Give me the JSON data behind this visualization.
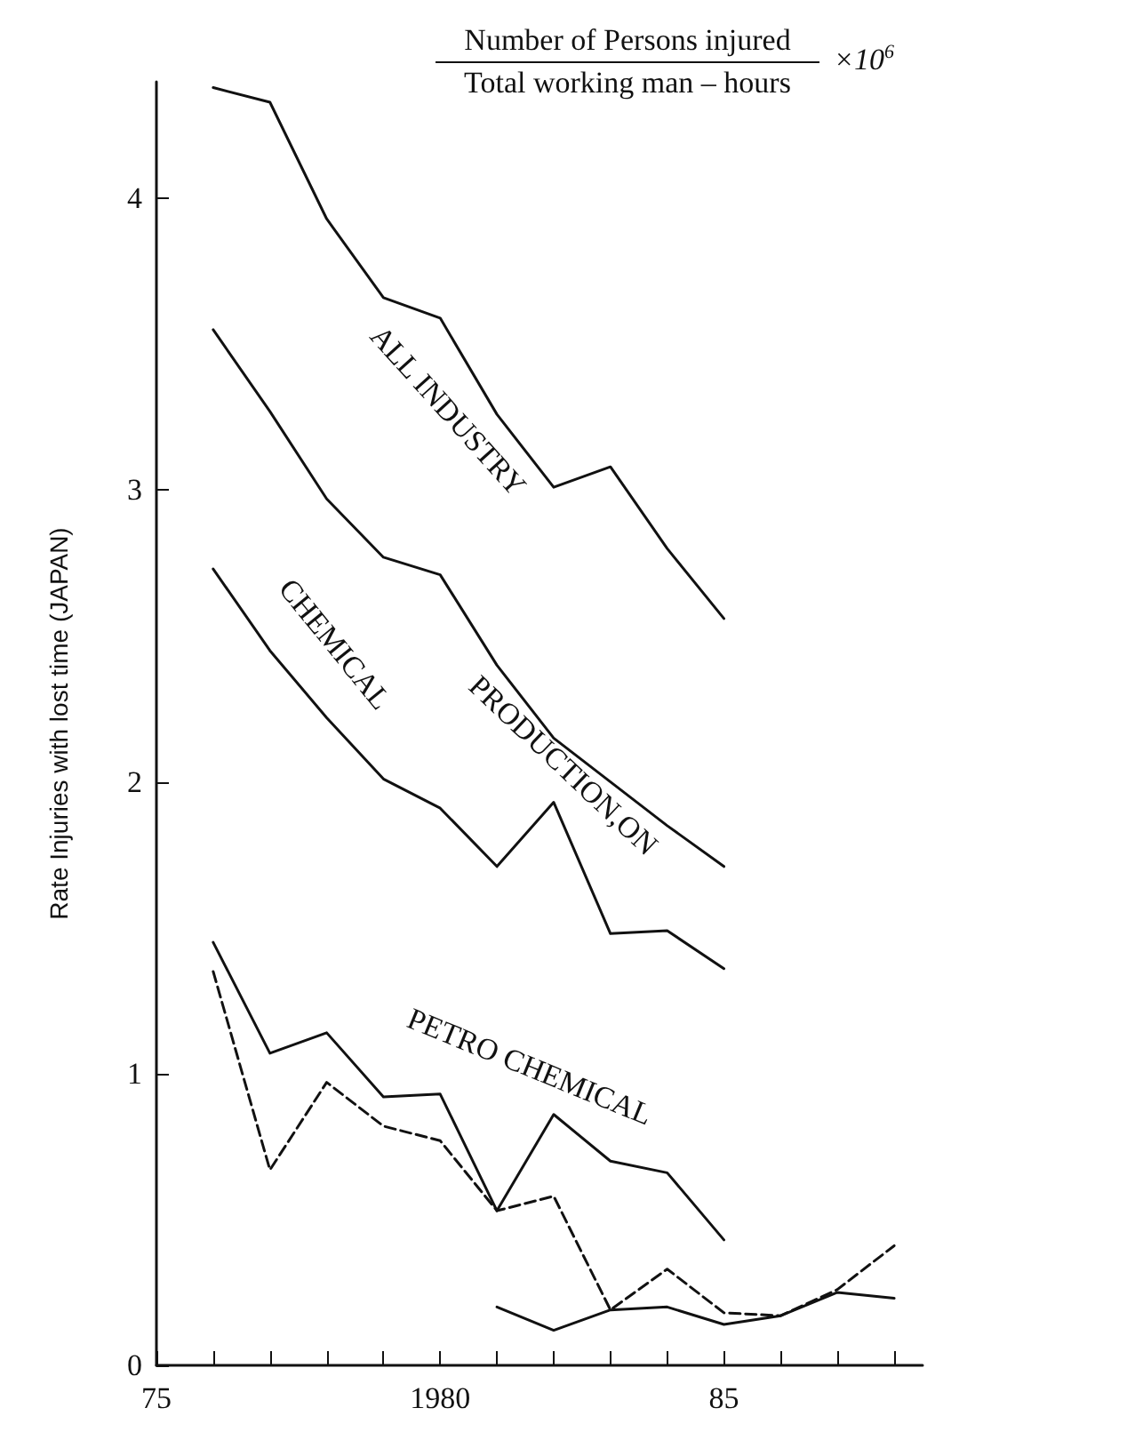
{
  "chart_data": {
    "type": "line",
    "title": "Number of Persons injured",
    "subtitle": "Total working man – hours",
    "annotations": [
      "×10$^{6}$"
    ],
    "ylabel": "Rate Injuries with lost time (JAPAN)",
    "xlim": [
      1975,
      1988.5
    ],
    "ylim": [
      0,
      4.4
    ],
    "xticks": [
      {
        "value": 1975,
        "label": "75"
      },
      {
        "value": 1976,
        "label": null
      },
      {
        "value": 1977,
        "label": null
      },
      {
        "value": 1978,
        "label": null
      },
      {
        "value": 1979,
        "label": null
      },
      1980,
      {
        "value": 1981,
        "label": null
      },
      {
        "value": 1982,
        "label": null
      },
      {
        "value": 1983,
        "label": null
      },
      {
        "value": 1984,
        "label": null
      },
      {
        "value": 1985,
        "label": "85"
      },
      {
        "value": 1986,
        "label": null
      },
      {
        "value": 1987,
        "label": null
      },
      {
        "value": 1988,
        "label": null
      }
    ],
    "yticks": [
      0,
      1,
      2,
      3,
      4
    ],
    "grid": false,
    "legend": false,
    "marker": "none",
    "series": [
      {
        "name": "ALL INDUSTRY",
        "color": "#111111",
        "line_style": "solid",
        "x": [
          1976,
          1977,
          1978,
          1979,
          1980,
          1981,
          1982,
          1983,
          1984,
          1985
        ],
        "values": [
          4.38,
          4.33,
          3.93,
          3.66,
          3.59,
          3.26,
          3.01,
          3.08,
          2.8,
          2.56
        ]
      },
      {
        "name": "PRODUCTION,ON",
        "color": "#111111",
        "line_style": "solid",
        "x": [
          1976,
          1977,
          1978,
          1979,
          1980,
          1981,
          1982,
          1983,
          1984,
          1985
        ],
        "values": [
          3.55,
          3.27,
          2.97,
          2.77,
          2.71,
          2.4,
          2.15,
          2.0,
          1.85,
          1.71
        ]
      },
      {
        "name": "CHEMICAL",
        "color": "#111111",
        "line_style": "solid",
        "x": [
          1976,
          1977,
          1978,
          1979,
          1980,
          1981,
          1982,
          1983,
          1984,
          1985
        ],
        "values": [
          2.73,
          2.45,
          2.22,
          2.01,
          1.91,
          1.71,
          1.93,
          1.48,
          1.49,
          1.36
        ]
      },
      {
        "name": "PETRO CHEMICAL",
        "color": "#111111",
        "line_style": "solid",
        "x": [
          1976,
          1977,
          1978,
          1979,
          1980,
          1981,
          1982,
          1983,
          1984,
          1985
        ],
        "values": [
          1.45,
          1.07,
          1.14,
          0.92,
          0.93,
          0.53,
          0.86,
          0.7,
          0.66,
          0.43
        ]
      },
      {
        "color": "#111111",
        "line_style": "dashed",
        "x": [
          1976,
          1977,
          1978,
          1979,
          1980,
          1981,
          1982,
          1983,
          1984,
          1985,
          1986,
          1987,
          1988
        ],
        "values": [
          1.35,
          0.67,
          0.97,
          0.82,
          0.77,
          0.53,
          0.58,
          0.19,
          0.33,
          0.18,
          0.17,
          0.26,
          0.41
        ]
      },
      {
        "color": "#111111",
        "line_style": "solid",
        "x": [
          1981,
          1982,
          1983,
          1984,
          1985,
          1986,
          1987,
          1988
        ],
        "values": [
          0.2,
          0.12,
          0.19,
          0.2,
          0.14,
          0.17,
          0.25,
          0.23
        ]
      }
    ]
  }
}
